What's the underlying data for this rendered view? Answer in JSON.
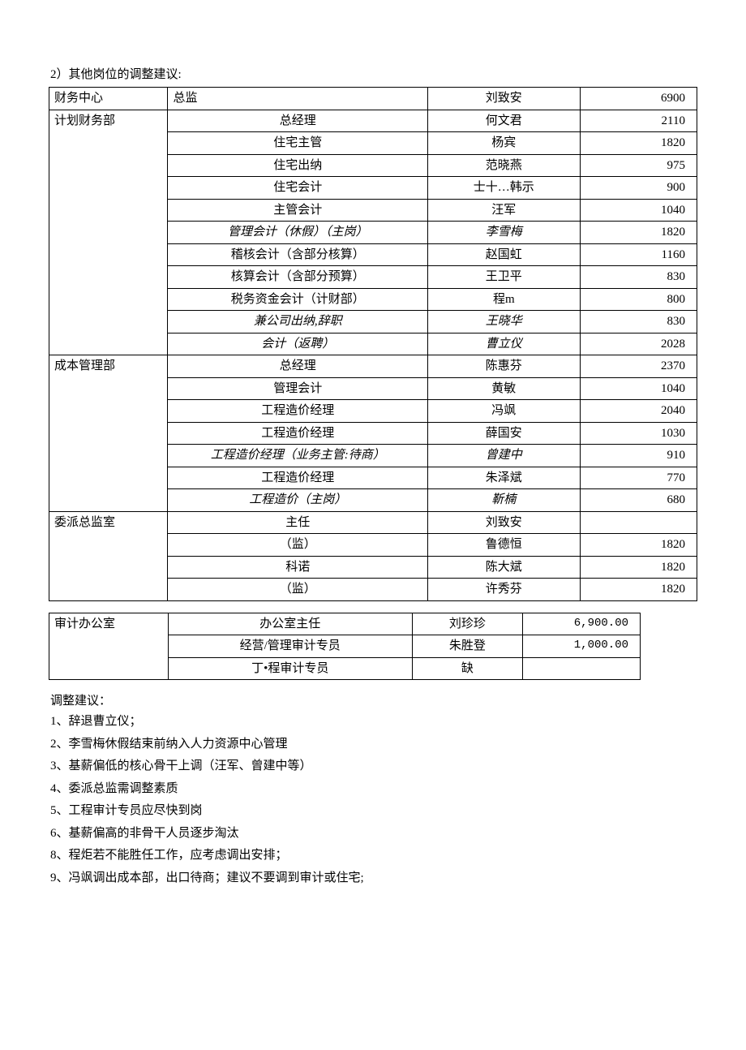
{
  "heading": "2）其他岗位的调整建议:",
  "table1": {
    "border_color": "#000000",
    "background_color": "#ffffff",
    "fontsize": 15,
    "col_align": [
      "left",
      "center",
      "center",
      "right"
    ],
    "groups": [
      {
        "dept": "财务中心",
        "rows": [
          {
            "position": "总监",
            "position_align": "left",
            "name": "刘致安",
            "value": "6900",
            "italic": false
          }
        ]
      },
      {
        "dept": "计划财务部",
        "rows": [
          {
            "position": "总经理",
            "name": "何文君",
            "value": "2110",
            "italic": false
          },
          {
            "position": "住宅主管",
            "name": "杨宾",
            "value": "1820",
            "italic": false
          },
          {
            "position": "住宅出纳",
            "name": "范晓燕",
            "value": "975",
            "italic": false
          },
          {
            "position": "住宅会计",
            "name": "士十…韩示",
            "value": "900",
            "italic": false
          },
          {
            "position": "主管会计",
            "name": "汪军",
            "value": "1040",
            "italic": false
          },
          {
            "position": "管理会计（休假）（主岗）",
            "name": "李雪梅",
            "value": "1820",
            "italic": true
          },
          {
            "position": "稽核会计（含部分核算）",
            "name": "赵国虹",
            "value": "1160",
            "italic": false
          },
          {
            "position": "核算会计（含部分预算）",
            "name": "王卫平",
            "value": "830",
            "italic": false
          },
          {
            "position": "税务资金会计（计财部）",
            "name": "程m",
            "value": "800",
            "italic": false
          },
          {
            "position": "兼公司出纳,辞职",
            "name": "王晓华",
            "value": "830",
            "italic": true
          },
          {
            "position": "会计（返聘）",
            "name": "曹立仪",
            "value": "2028",
            "italic": true
          }
        ]
      },
      {
        "dept": "成本管理部",
        "rows": [
          {
            "position": "总经理",
            "name": "陈惠芬",
            "value": "2370",
            "italic": false
          },
          {
            "position": "管理会计",
            "name": "黄敏",
            "value": "1040",
            "italic": false
          },
          {
            "position": "工程造价经理",
            "name": "冯飒",
            "value": "2040",
            "italic": false
          },
          {
            "position": "工程造价经理",
            "name": "薛国安",
            "value": "1030",
            "italic": false
          },
          {
            "position": "工程造价经理（业务主管:待商）",
            "name": "曾建中",
            "value": "910",
            "italic": true
          },
          {
            "position": "工程造价经理",
            "name": "朱泽斌",
            "value": "770",
            "italic": false
          },
          {
            "position": "工程造价（主岗）",
            "name": "靳楠",
            "value": "680",
            "italic": true
          }
        ]
      },
      {
        "dept": "委派总监室",
        "rows": [
          {
            "position": "主任",
            "name": "刘致安",
            "value": "",
            "italic": false
          },
          {
            "position": "（监）",
            "name": "鲁德恒",
            "value": "1820",
            "italic": false
          },
          {
            "position": "科诺",
            "name": "陈大斌",
            "value": "1820",
            "italic": false
          },
          {
            "position": "（监）",
            "name": "许秀芬",
            "value": "1820",
            "italic": false
          }
        ]
      }
    ]
  },
  "table2": {
    "border_color": "#000000",
    "background_color": "#ffffff",
    "fontsize": 15,
    "value_font": "monospace",
    "groups": [
      {
        "dept": "审计办公室",
        "rows": [
          {
            "position": "办公室主任",
            "name": "刘珍珍",
            "value": "6,900.00"
          },
          {
            "position": "经营/管理审计专员",
            "name": "朱胜登",
            "value": "1,000.00"
          },
          {
            "position": "丁•程审计专员",
            "name": "缺",
            "value": ""
          }
        ]
      }
    ]
  },
  "notes_heading": "调整建议：",
  "notes": [
    "1、辞退曹立仪；",
    "2、李雪梅休假结束前纳入人力资源中心管理",
    "3、基薪偏低的核心骨干上调（汪军、曾建中等）",
    "4、委派总监需调整素质",
    "5、工程审计专员应尽快到岗",
    "6、基薪偏高的非骨干人员逐步淘汰",
    "8、程炬若不能胜任工作，应考虑调出安排；",
    "9、冯飒调出成本部，出口待商；建议不要调到审计或住宅;"
  ]
}
